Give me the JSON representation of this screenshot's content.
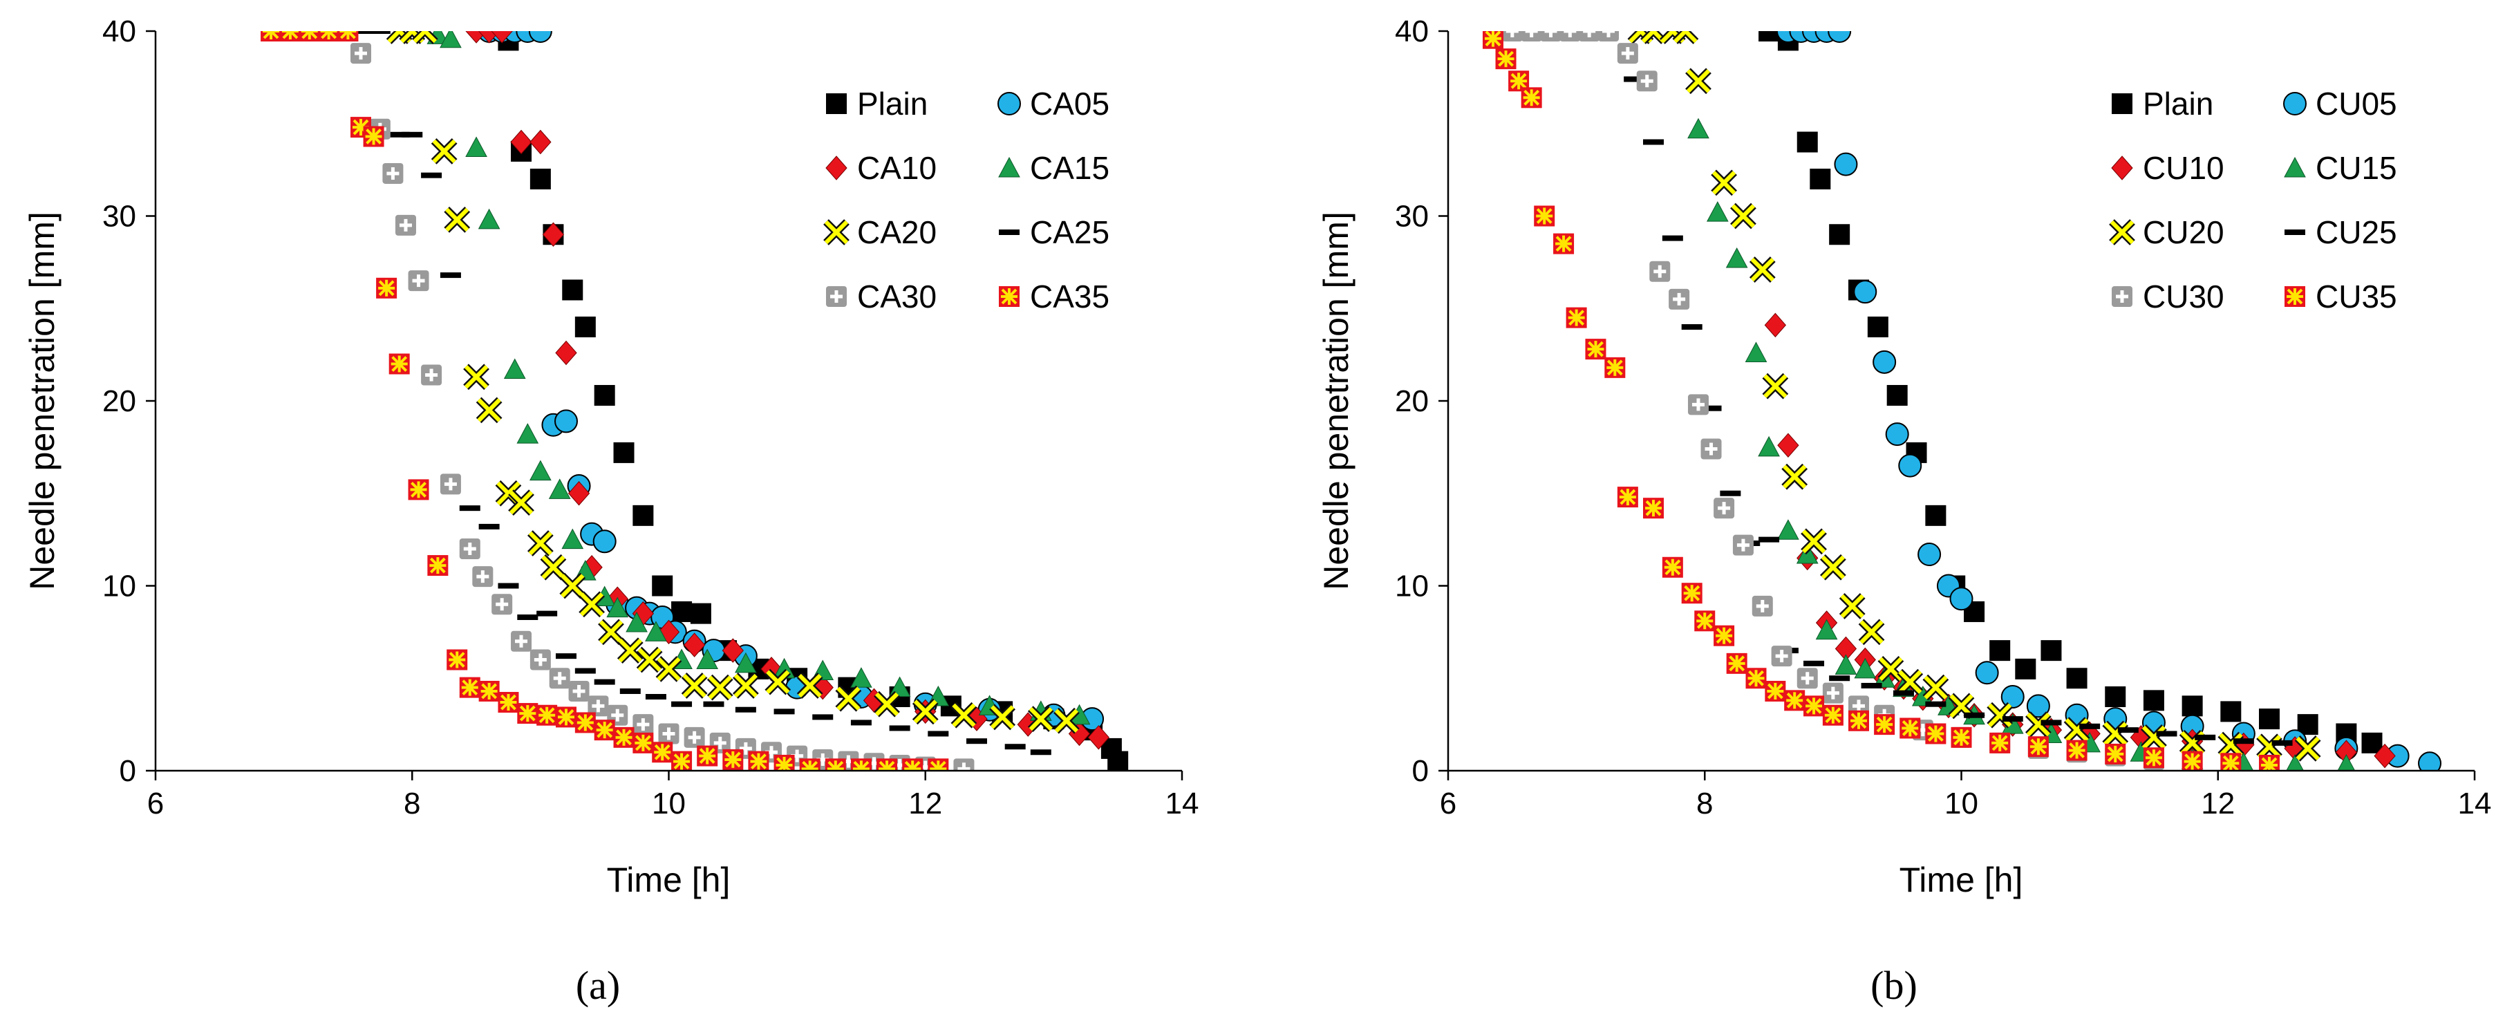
{
  "chart_data": [
    {
      "type": "scatter",
      "panel_label": "(a)",
      "xlabel": "Time [h]",
      "ylabel": "Needle penetration [mm]",
      "xlim": [
        6,
        14
      ],
      "ylim": [
        0,
        40
      ],
      "xticks": [
        6,
        8,
        10,
        12,
        14
      ],
      "yticks": [
        0,
        10,
        20,
        30,
        40
      ],
      "legend_position": "top-right",
      "series": [
        {
          "name": "Plain",
          "marker": "square",
          "color": "#000000",
          "x": [
            8.75,
            8.85,
            9.0,
            9.1,
            9.25,
            9.35,
            9.5,
            9.65,
            9.8,
            9.95,
            10.1,
            10.25,
            10.45,
            10.7,
            11.0,
            11.4,
            11.8,
            12.2,
            12.6,
            13.0,
            13.3,
            13.45,
            13.5
          ],
          "y": [
            39.5,
            33.5,
            32,
            29,
            26,
            24,
            20.3,
            17.2,
            13.8,
            10,
            8.6,
            8.5,
            6.5,
            5.5,
            5.0,
            4.5,
            4.0,
            3.5,
            3.2,
            2.8,
            2.2,
            1.2,
            0.5
          ]
        },
        {
          "name": "CA05",
          "marker": "circle",
          "color": "#22b2e8",
          "x": [
            8.6,
            8.7,
            8.8,
            8.9,
            9.0,
            9.1,
            9.2,
            9.3,
            9.4,
            9.5,
            9.6,
            9.75,
            9.85,
            9.95,
            10.05,
            10.2,
            10.35,
            10.6,
            11.0,
            11.5,
            12.0,
            12.5,
            13.0,
            13.3
          ],
          "y": [
            40,
            40,
            40,
            40,
            40,
            18.7,
            18.9,
            15.4,
            12.8,
            12.4,
            9.0,
            8.8,
            8.5,
            8.3,
            7.5,
            7.0,
            6.5,
            6.2,
            4.5,
            4.0,
            3.6,
            3.3,
            3.0,
            2.8
          ]
        },
        {
          "name": "CA10",
          "marker": "diamond",
          "color": "#e8141c",
          "x": [
            8.5,
            8.6,
            8.7,
            8.85,
            9.0,
            9.1,
            9.2,
            9.3,
            9.4,
            9.6,
            9.8,
            10.0,
            10.2,
            10.5,
            10.8,
            11.2,
            11.6,
            12.0,
            12.4,
            12.8,
            13.2,
            13.35
          ],
          "y": [
            40,
            40,
            40,
            34,
            34,
            29,
            22.6,
            15,
            11,
            9.3,
            8.5,
            7.5,
            6.8,
            6.5,
            5.5,
            4.5,
            3.8,
            3.2,
            2.8,
            2.5,
            2.0,
            1.8
          ]
        },
        {
          "name": "CA15",
          "marker": "triangle",
          "color": "#1a9e4b",
          "x": [
            8.2,
            8.3,
            8.5,
            8.6,
            8.8,
            8.9,
            9.0,
            9.15,
            9.25,
            9.35,
            9.5,
            9.6,
            9.75,
            9.9,
            10.1,
            10.3,
            10.6,
            10.9,
            11.2,
            11.5,
            11.8,
            12.1,
            12.5,
            12.9,
            13.2
          ],
          "y": [
            39.8,
            39.6,
            33.7,
            29.8,
            21.7,
            18.2,
            16.2,
            15.2,
            12.5,
            10.8,
            9.4,
            8.8,
            8.0,
            7.5,
            6.0,
            6.0,
            5.8,
            5.5,
            5.4,
            5.0,
            4.5,
            4.0,
            3.5,
            3.2,
            3.0
          ]
        },
        {
          "name": "CA20",
          "marker": "cross",
          "color": "#ffff00",
          "x": [
            7.9,
            8.0,
            8.1,
            8.25,
            8.35,
            8.5,
            8.6,
            8.75,
            8.85,
            9.0,
            9.1,
            9.25,
            9.4,
            9.55,
            9.7,
            9.85,
            10.0,
            10.2,
            10.4,
            10.6,
            10.85,
            11.1,
            11.4,
            11.7,
            12.0,
            12.3,
            12.6,
            12.9,
            13.1
          ],
          "y": [
            40,
            40,
            40,
            33.5,
            29.8,
            21.3,
            19.5,
            15.0,
            14.5,
            12.3,
            11.0,
            10.0,
            9.0,
            7.5,
            6.5,
            6.0,
            5.5,
            4.6,
            4.5,
            4.6,
            4.8,
            4.6,
            3.9,
            3.6,
            3.2,
            3.0,
            2.9,
            2.8,
            2.7
          ]
        },
        {
          "name": "CA25",
          "marker": "dash",
          "color": "#000000",
          "x": [
            7.6,
            7.75,
            7.9,
            8.0,
            8.15,
            8.3,
            8.45,
            8.6,
            8.75,
            8.9,
            9.05,
            9.2,
            9.35,
            9.5,
            9.7,
            9.9,
            10.1,
            10.35,
            10.6,
            10.9,
            11.2,
            11.5,
            11.8,
            12.1,
            12.4,
            12.7,
            12.9
          ],
          "y": [
            40,
            40,
            34.4,
            34.4,
            32.2,
            26.8,
            14.2,
            13.2,
            10.0,
            8.3,
            8.5,
            6.2,
            5.4,
            4.8,
            4.3,
            4.0,
            3.6,
            3.6,
            3.3,
            3.2,
            2.9,
            2.6,
            2.3,
            2.0,
            1.6,
            1.3,
            1.0
          ]
        },
        {
          "name": "CA30",
          "marker": "plus-square",
          "color": "#9a9a9a",
          "x": [
            7.6,
            7.75,
            7.85,
            7.95,
            8.05,
            8.15,
            8.3,
            8.45,
            8.55,
            8.7,
            8.85,
            9.0,
            9.15,
            9.3,
            9.45,
            9.6,
            9.8,
            10.0,
            10.2,
            10.4,
            10.6,
            10.8,
            11.0,
            11.2,
            11.4,
            11.6,
            11.8,
            12.0,
            12.3
          ],
          "y": [
            38.8,
            34.7,
            32.3,
            29.5,
            26.5,
            21.4,
            15.5,
            12.0,
            10.5,
            9.0,
            7.0,
            6.0,
            5.0,
            4.3,
            3.5,
            3.0,
            2.5,
            2.0,
            1.8,
            1.5,
            1.2,
            1.0,
            0.8,
            0.6,
            0.5,
            0.4,
            0.3,
            0.2,
            0.1
          ]
        },
        {
          "name": "CA35",
          "marker": "star-square",
          "color": "#e8141c",
          "x": [
            6.9,
            7.05,
            7.2,
            7.35,
            7.5,
            7.6,
            7.7,
            7.8,
            7.9,
            8.05,
            8.2,
            8.35,
            8.45,
            8.6,
            8.75,
            8.9,
            9.05,
            9.2,
            9.35,
            9.5,
            9.65,
            9.8,
            9.95,
            10.1,
            10.3,
            10.5,
            10.7,
            10.9,
            11.1,
            11.3,
            11.5,
            11.7,
            11.9,
            12.1
          ],
          "y": [
            40,
            40,
            40,
            40,
            40,
            34.8,
            34.3,
            26.1,
            22.0,
            15.2,
            11.1,
            6.0,
            4.5,
            4.3,
            3.7,
            3.1,
            3.0,
            2.9,
            2.6,
            2.2,
            1.8,
            1.5,
            1.0,
            0.5,
            0.8,
            0.6,
            0.5,
            0.3,
            0.1,
            0.1,
            0.1,
            0.1,
            0.1,
            0.1
          ]
        }
      ]
    },
    {
      "type": "scatter",
      "panel_label": "(b)",
      "xlabel": "Time [h]",
      "ylabel": "Needle penetration [mm]",
      "xlim": [
        6,
        14
      ],
      "ylim": [
        0,
        40
      ],
      "xticks": [
        6,
        8,
        10,
        12,
        14
      ],
      "yticks": [
        0,
        10,
        20,
        30,
        40
      ],
      "legend_position": "top-right",
      "series": [
        {
          "name": "Plain",
          "marker": "square",
          "color": "#000000",
          "x": [
            8.5,
            8.65,
            8.8,
            8.9,
            9.05,
            9.2,
            9.35,
            9.5,
            9.65,
            9.8,
            9.95,
            10.1,
            10.3,
            10.5,
            10.7,
            10.9,
            11.2,
            11.5,
            11.8,
            12.1,
            12.4,
            12.7,
            13.0,
            13.2
          ],
          "y": [
            40,
            39.5,
            34,
            32,
            29,
            26,
            24,
            20.3,
            17.2,
            13.8,
            10,
            8.6,
            6.5,
            5.5,
            6.5,
            5.0,
            4.0,
            3.8,
            3.5,
            3.2,
            2.8,
            2.5,
            2.0,
            1.5
          ]
        },
        {
          "name": "CU05",
          "marker": "circle",
          "color": "#22b2e8",
          "x": [
            8.65,
            8.75,
            8.85,
            8.95,
            9.05,
            9.1,
            9.25,
            9.4,
            9.5,
            9.6,
            9.75,
            9.9,
            10.0,
            10.2,
            10.4,
            10.6,
            10.9,
            11.2,
            11.5,
            11.8,
            12.2,
            12.6,
            13.0,
            13.4,
            13.65
          ],
          "y": [
            40,
            40,
            40,
            40,
            40,
            32.8,
            25.9,
            22.1,
            18.2,
            16.5,
            11.7,
            10.0,
            9.3,
            5.3,
            4.0,
            3.5,
            3.0,
            2.8,
            2.6,
            2.4,
            2.0,
            1.6,
            1.2,
            0.8,
            0.4
          ]
        },
        {
          "name": "CU10",
          "marker": "diamond",
          "color": "#e8141c",
          "x": [
            8.55,
            8.65,
            8.8,
            8.95,
            9.1,
            9.25,
            9.4,
            9.55,
            9.7,
            9.9,
            10.1,
            10.4,
            10.7,
            11.0,
            11.4,
            11.8,
            12.2,
            12.6,
            13.0,
            13.3
          ],
          "y": [
            24.1,
            17.6,
            11.5,
            8.0,
            6.6,
            6.0,
            5.0,
            4.5,
            3.9,
            3.5,
            3.0,
            2.5,
            2.2,
            2.0,
            1.8,
            1.6,
            1.4,
            1.2,
            1.0,
            0.8
          ]
        },
        {
          "name": "CU15",
          "marker": "triangle",
          "color": "#1a9e4b",
          "x": [
            7.95,
            8.1,
            8.25,
            8.4,
            8.5,
            8.65,
            8.8,
            8.95,
            9.1,
            9.25,
            9.4,
            9.55,
            9.7,
            9.9,
            10.1,
            10.4,
            10.7,
            11.0,
            11.4,
            11.8,
            12.2,
            12.6,
            13.0
          ],
          "y": [
            34.7,
            30.2,
            27.7,
            22.6,
            17.5,
            13.0,
            11.7,
            7.6,
            5.7,
            5.5,
            5.0,
            4.5,
            4.0,
            3.5,
            3.0,
            2.5,
            2.0,
            1.5,
            1.0,
            0.6,
            0.4,
            0.3,
            0.3
          ]
        },
        {
          "name": "CU20",
          "marker": "cross",
          "color": "#ffff00",
          "x": [
            7.5,
            7.6,
            7.75,
            7.85,
            7.95,
            8.15,
            8.3,
            8.45,
            8.55,
            8.7,
            8.85,
            9.0,
            9.15,
            9.3,
            9.45,
            9.6,
            9.8,
            10.0,
            10.3,
            10.6,
            10.9,
            11.2,
            11.5,
            11.8,
            12.1,
            12.4,
            12.7
          ],
          "y": [
            40,
            40,
            40,
            40,
            37.3,
            31.8,
            30.0,
            27.1,
            20.8,
            15.9,
            12.4,
            11.0,
            8.9,
            7.5,
            5.5,
            4.8,
            4.5,
            3.5,
            3.0,
            2.5,
            2.2,
            2.0,
            1.8,
            1.5,
            1.4,
            1.3,
            1.2
          ]
        },
        {
          "name": "CU25",
          "marker": "dash",
          "color": "#000000",
          "x": [
            7.45,
            7.6,
            7.75,
            7.9,
            8.05,
            8.2,
            8.35,
            8.5,
            8.65,
            8.85,
            9.05,
            9.3,
            9.55,
            9.8,
            10.1,
            10.4,
            10.7,
            11.0,
            11.3,
            11.6,
            11.9,
            12.2,
            12.5
          ],
          "y": [
            37.4,
            34.0,
            28.8,
            24.0,
            19.6,
            15.0,
            12.3,
            12.5,
            6.5,
            5.8,
            5.0,
            4.6,
            4.2,
            3.6,
            3.0,
            2.8,
            2.6,
            2.4,
            2.2,
            2.0,
            1.8,
            1.6,
            1.5
          ]
        },
        {
          "name": "CU30",
          "marker": "plus-square",
          "color": "#9a9a9a",
          "x": [
            6.5,
            6.65,
            6.8,
            6.95,
            7.1,
            7.25,
            7.4,
            7.55,
            7.65,
            7.8,
            7.95,
            8.05,
            8.15,
            8.3,
            8.45,
            8.6,
            8.8,
            9.0,
            9.2,
            9.4,
            9.7,
            10.0,
            10.3,
            10.6,
            10.9,
            11.2,
            11.5,
            11.8
          ],
          "y": [
            40,
            40,
            40,
            40,
            40,
            40,
            38.8,
            37.3,
            27.0,
            25.5,
            19.8,
            17.4,
            14.2,
            12.2,
            8.9,
            6.2,
            5.0,
            4.2,
            3.5,
            3.0,
            2.2,
            1.8,
            1.5,
            1.2,
            1.0,
            0.8,
            0.6,
            0.3
          ]
        },
        {
          "name": "CU35",
          "marker": "star-square",
          "color": "#e8141c",
          "x": [
            6.35,
            6.45,
            6.55,
            6.65,
            6.75,
            6.9,
            7.0,
            7.15,
            7.3,
            7.4,
            7.6,
            7.75,
            7.9,
            8.0,
            8.15,
            8.25,
            8.4,
            8.55,
            8.7,
            8.85,
            9.0,
            9.2,
            9.4,
            9.6,
            9.8,
            10.0,
            10.3,
            10.6,
            10.9,
            11.2,
            11.5,
            11.8,
            12.1,
            12.4
          ],
          "y": [
            39.6,
            38.5,
            37.3,
            36.4,
            30.0,
            28.5,
            24.5,
            22.8,
            21.8,
            14.8,
            14.2,
            11.0,
            9.6,
            8.1,
            7.3,
            5.8,
            5.0,
            4.3,
            3.8,
            3.5,
            3.0,
            2.7,
            2.5,
            2.3,
            2.0,
            1.8,
            1.5,
            1.3,
            1.1,
            0.9,
            0.7,
            0.5,
            0.4,
            0.3
          ]
        }
      ]
    }
  ]
}
